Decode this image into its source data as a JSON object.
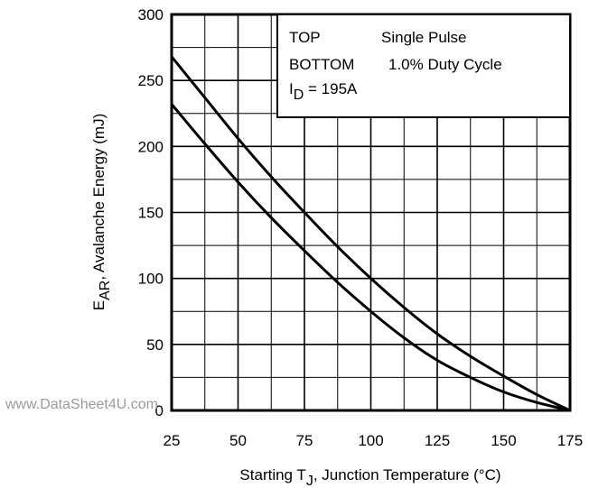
{
  "chart_data": {
    "type": "line",
    "xlabel": "Starting T",
    "xlabel_sub": "J",
    "xlabel_rest": ", Junction Temperature (°C)",
    "ylabel": "E",
    "ylabel_sub": "AR",
    "ylabel_rest": ", Avalanche Energy (mJ)",
    "xlim": [
      25,
      175
    ],
    "ylim": [
      0,
      300
    ],
    "x_ticks": [
      25,
      50,
      75,
      100,
      125,
      150,
      175
    ],
    "y_ticks": [
      0,
      50,
      100,
      150,
      200,
      250,
      300
    ],
    "x_tick_labels": [
      "25",
      "50",
      "75",
      "100",
      "125",
      "150",
      "175"
    ],
    "y_tick_labels": [
      "0",
      "50",
      "100",
      "150",
      "200",
      "250",
      "300"
    ],
    "x_minor_step": 12.5,
    "y_minor_step": 25,
    "grid": true,
    "legend": {
      "placement": "top-right",
      "line1_key": "TOP",
      "line1_value": "Single Pulse",
      "line2_key": "BOTTOM",
      "line2_value": "1.0% Duty Cycle",
      "line3_prefix": "I",
      "line3_sub": "D",
      "line3_rest": " = 195A"
    },
    "series": [
      {
        "x": [
          25,
          37.5,
          50,
          62.5,
          75,
          87.5,
          100,
          112.5,
          125,
          137.5,
          150,
          162.5,
          175
        ],
        "values": [
          268,
          237,
          206,
          177,
          150,
          124,
          100,
          78,
          58,
          41,
          26,
          12,
          0
        ]
      },
      {
        "x": [
          25,
          37.5,
          50,
          62.5,
          75,
          87.5,
          100,
          112.5,
          125,
          137.5,
          150,
          162.5,
          175
        ],
        "values": [
          232,
          202,
          173,
          146,
          121,
          97,
          75,
          55,
          38,
          25,
          14,
          6,
          0
        ]
      }
    ]
  },
  "watermark": "www.DataSheet4U.com"
}
